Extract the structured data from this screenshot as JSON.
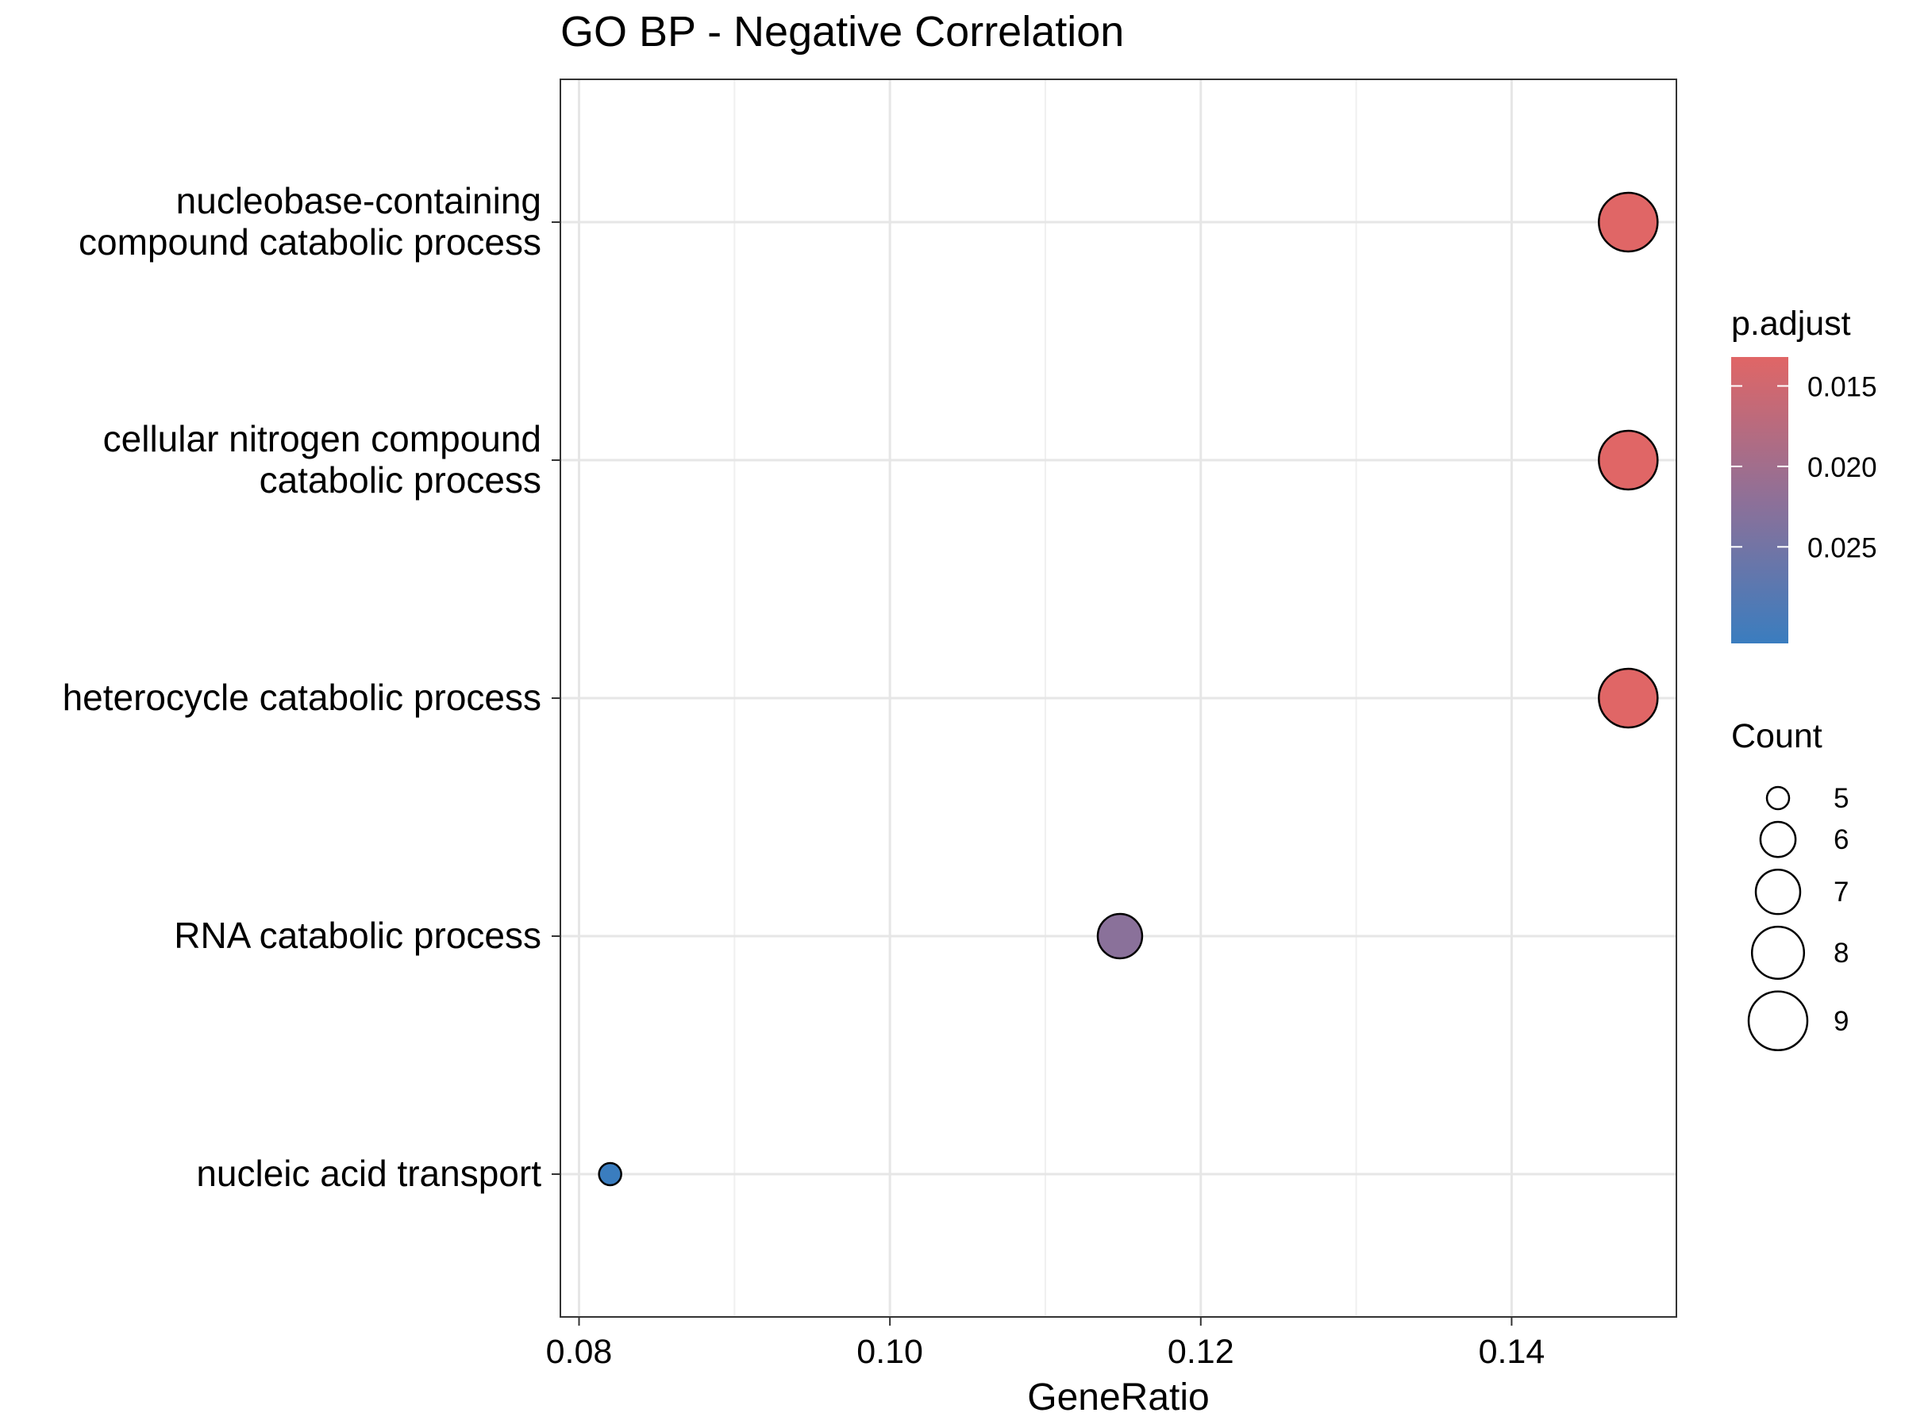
{
  "chart_data": {
    "type": "scatter",
    "title": "GO BP - Negative Correlation",
    "xlabel": "GeneRatio",
    "ylabel": "",
    "xlim": [
      0.0788,
      0.1506
    ],
    "x_ticks": [
      "0.08",
      "0.10",
      "0.12",
      "0.14"
    ],
    "x_tick_values": [
      0.08,
      0.1,
      0.12,
      0.14
    ],
    "grid": true,
    "categories": [
      "nucleobase-containing compound catabolic process",
      "cellular nitrogen compound catabolic process",
      "heterocycle catabolic process",
      "RNA catabolic process",
      "nucleic acid transport"
    ],
    "category_lines": [
      [
        "nucleobase-containing",
        "compound catabolic process"
      ],
      [
        "cellular nitrogen compound",
        "catabolic process"
      ],
      [
        "heterocycle catabolic process"
      ],
      [
        "RNA catabolic process"
      ],
      [
        "nucleic acid transport"
      ]
    ],
    "points": [
      {
        "term": "nucleobase-containing compound catabolic process",
        "gene_ratio": 0.1475,
        "count": 9,
        "p_adjust": 0.0132
      },
      {
        "term": "cellular nitrogen compound catabolic process",
        "gene_ratio": 0.1475,
        "count": 9,
        "p_adjust": 0.0132
      },
      {
        "term": "heterocycle catabolic process",
        "gene_ratio": 0.1475,
        "count": 9,
        "p_adjust": 0.0132
      },
      {
        "term": "RNA catabolic process",
        "gene_ratio": 0.1148,
        "count": 7,
        "p_adjust": 0.0225
      },
      {
        "term": "nucleic acid transport",
        "gene_ratio": 0.082,
        "count": 5,
        "p_adjust": 0.031
      }
    ],
    "color_legend": {
      "title": "p.adjust",
      "range": [
        0.0132,
        0.031
      ],
      "ticks": [
        "0.015",
        "0.020",
        "0.025"
      ],
      "tick_values": [
        0.015,
        0.02,
        0.025
      ],
      "low_color": "#E06666",
      "mid_color": "#8E7098",
      "high_color": "#3A7DBF"
    },
    "size_legend": {
      "title": "Count",
      "values": [
        "5",
        "6",
        "7",
        "8",
        "9"
      ]
    },
    "legend_position": "right"
  }
}
